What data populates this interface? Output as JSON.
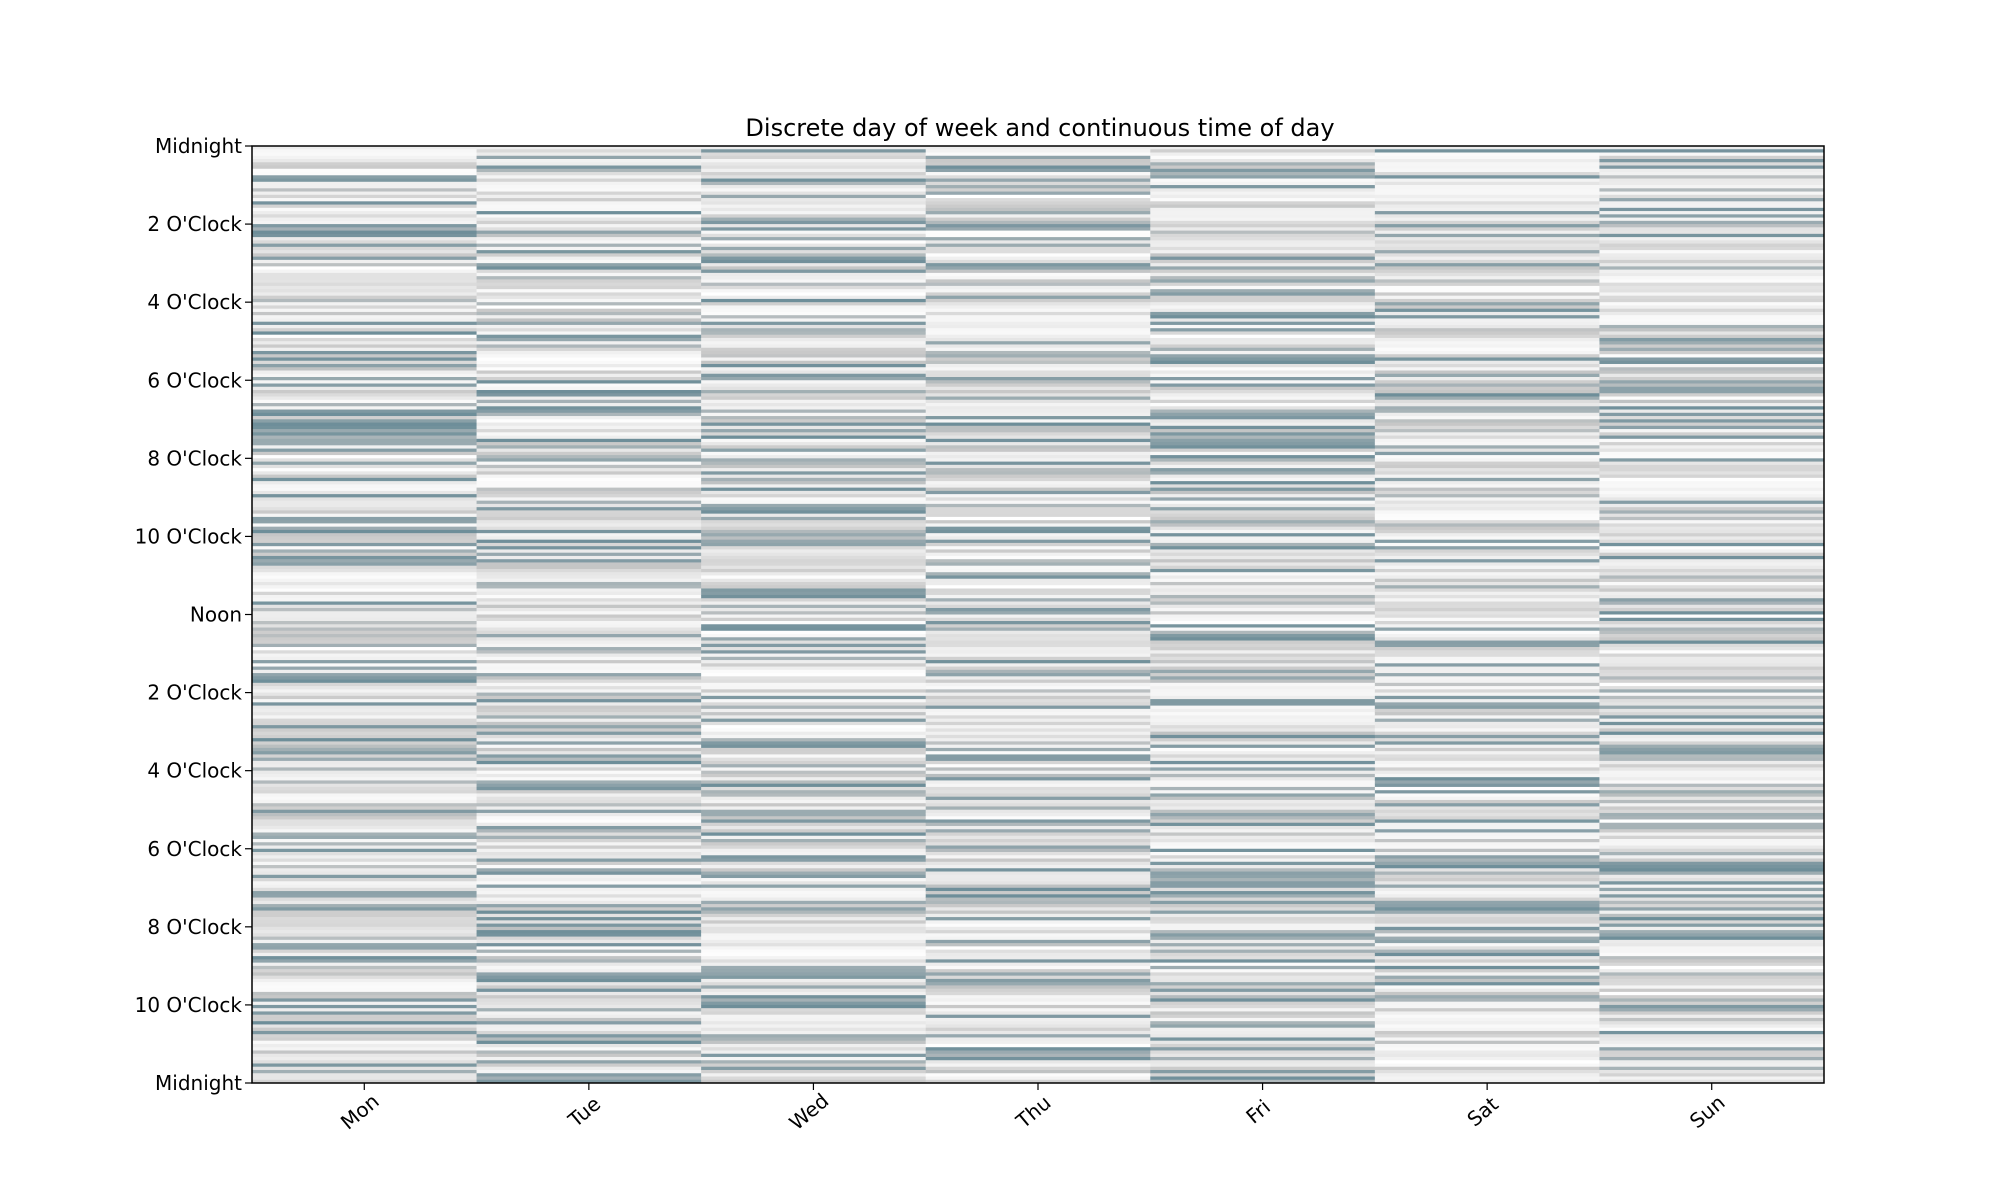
{
  "chart_data": {
    "type": "heatmap",
    "title": "Discrete day of week and continuous time of day",
    "x_categories": [
      "Mon",
      "Tue",
      "Wed",
      "Thu",
      "Fri",
      "Sat",
      "Sun"
    ],
    "y_tick_labels": [
      "Midnight",
      "2 O'Clock",
      "4 O'Clock",
      "6 O'Clock",
      "8 O'Clock",
      "10 O'Clock",
      "Noon",
      "2 O'Clock",
      "4 O'Clock",
      "6 O'Clock",
      "8 O'Clock",
      "10 O'Clock",
      "Midnight"
    ],
    "y_tick_hours": [
      0,
      2,
      4,
      6,
      8,
      10,
      12,
      14,
      16,
      18,
      20,
      22,
      24
    ],
    "ylim": [
      0,
      24
    ],
    "y_inverted": true,
    "grid": false,
    "colors": {
      "low": "#ffffff",
      "mid": "#c8c8c8",
      "high": "#6e8e99"
    },
    "note_values": "intensity per day and time bin",
    "time_bins_per_day": 288,
    "seed_by_day": [
      11,
      23,
      37,
      41,
      53,
      67,
      79
    ]
  }
}
